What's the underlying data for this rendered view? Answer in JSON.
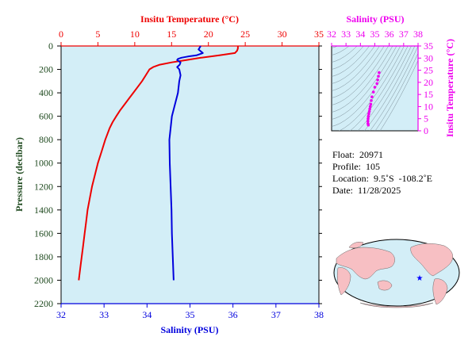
{
  "profile_chart": {
    "title": "Insitu Temperature (°C)",
    "xlabel": "Salinity (PSU)",
    "ylabel": "Pressure (decibar)",
    "temp_ticks": [
      "0",
      "5",
      "10",
      "15",
      "20",
      "25",
      "30",
      "35"
    ],
    "sal_ticks": [
      "32",
      "33",
      "34",
      "35",
      "36",
      "37",
      "38"
    ],
    "pres_ticks": [
      "0",
      "200",
      "400",
      "600",
      "800",
      "1000",
      "1200",
      "1400",
      "1600",
      "1800",
      "2000",
      "2200"
    ]
  },
  "ts_chart": {
    "title": "Salinity (PSU)",
    "ylabel": "Insitu Temperature (°C)",
    "sal_ticks": [
      "32",
      "33",
      "34",
      "35",
      "36",
      "37",
      "38"
    ],
    "temp_ticks": [
      "0",
      "5",
      "10",
      "15",
      "20",
      "25",
      "30",
      "35"
    ]
  },
  "info": {
    "float_label": "Float:",
    "float_value": "20971",
    "profile_label": "Profile:",
    "profile_value": "105",
    "location_label": "Location:",
    "location_value": "9.5˚S  -108.2˚E",
    "date_label": "Date:",
    "date_value": "11/28/2025"
  },
  "chart_data": [
    {
      "type": "line",
      "title": "Insitu Temperature (°C)",
      "xlabel": "Salinity (PSU)",
      "ylabel": "Pressure (decibar)",
      "temp_range": [
        0,
        35
      ],
      "sal_range": [
        32,
        38
      ],
      "pressure_range": [
        0,
        2200
      ],
      "y_inverted": true,
      "grid": false,
      "background": "#d3eef7",
      "series": [
        {
          "axis": "temperature",
          "color": "#ee0000",
          "pressure": [
            0,
            20,
            40,
            60,
            80,
            100,
            120,
            140,
            160,
            180,
            200,
            250,
            300,
            350,
            400,
            450,
            500,
            550,
            600,
            650,
            700,
            750,
            800,
            900,
            1000,
            1100,
            1200,
            1300,
            1400,
            1500,
            1600,
            1700,
            1800,
            1900,
            2000
          ],
          "values": [
            24.0,
            24.0,
            23.9,
            23.6,
            21.5,
            19.0,
            17.0,
            15.0,
            13.4,
            12.5,
            12.0,
            11.5,
            11.0,
            10.4,
            9.8,
            9.2,
            8.6,
            8.0,
            7.5,
            7.0,
            6.6,
            6.3,
            6.0,
            5.5,
            5.0,
            4.6,
            4.2,
            3.9,
            3.6,
            3.4,
            3.2,
            3.0,
            2.8,
            2.6,
            2.4
          ]
        },
        {
          "axis": "salinity",
          "color": "#0000dd",
          "pressure": [
            0,
            30,
            60,
            80,
            90,
            100,
            110,
            120,
            140,
            160,
            180,
            200,
            250,
            300,
            400,
            500,
            600,
            700,
            800,
            1000,
            1200,
            1400,
            1600,
            1800,
            2000
          ],
          "values": [
            35.25,
            35.2,
            35.3,
            35.15,
            34.95,
            34.8,
            34.72,
            34.7,
            34.78,
            34.76,
            34.7,
            34.75,
            34.78,
            34.75,
            34.72,
            34.65,
            34.58,
            34.55,
            34.52,
            34.53,
            34.55,
            34.57,
            34.58,
            34.6,
            34.62
          ]
        }
      ]
    },
    {
      "type": "scatter",
      "title": "Salinity (PSU)",
      "ylabel": "Insitu Temperature (°C)",
      "x_range": [
        32,
        38
      ],
      "y_range": [
        0,
        35
      ],
      "color": "#ee00ee",
      "x": [
        35.3,
        35.25,
        35.2,
        35.15,
        35.0,
        34.9,
        34.8,
        34.75,
        34.72,
        34.68,
        34.65,
        34.62,
        34.58,
        34.55,
        34.53,
        34.52,
        34.52,
        34.55
      ],
      "y": [
        24.0,
        22.5,
        21.0,
        19.5,
        18.0,
        16.0,
        14.0,
        12.5,
        11.0,
        10.0,
        9.0,
        8.0,
        7.0,
        6.0,
        5.0,
        4.0,
        3.0,
        2.4
      ]
    }
  ]
}
